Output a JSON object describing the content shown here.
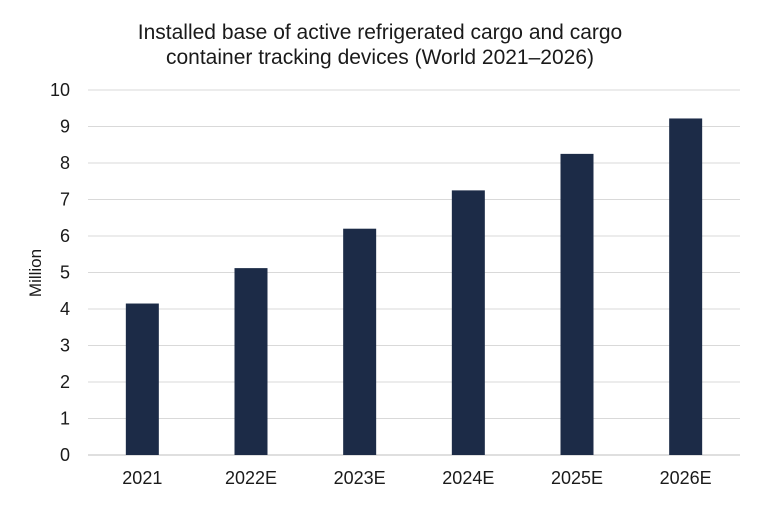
{
  "chart_data": {
    "type": "bar",
    "title_lines": [
      "Installed base of active refrigerated cargo and cargo",
      "container tracking devices (World 2021–2026)"
    ],
    "categories": [
      "2021",
      "2022E",
      "2023E",
      "2024E",
      "2025E",
      "2026E"
    ],
    "values": [
      4.15,
      5.12,
      6.2,
      7.25,
      8.25,
      9.22
    ],
    "ylabel": "Million",
    "xlabel": "",
    "ylim": [
      0,
      10
    ],
    "yticks": [
      "0",
      "1",
      "2",
      "3",
      "4",
      "5",
      "6",
      "7",
      "8",
      "9",
      "10"
    ],
    "grid": true,
    "legend": "none",
    "bar_color": "#1c2b47"
  }
}
